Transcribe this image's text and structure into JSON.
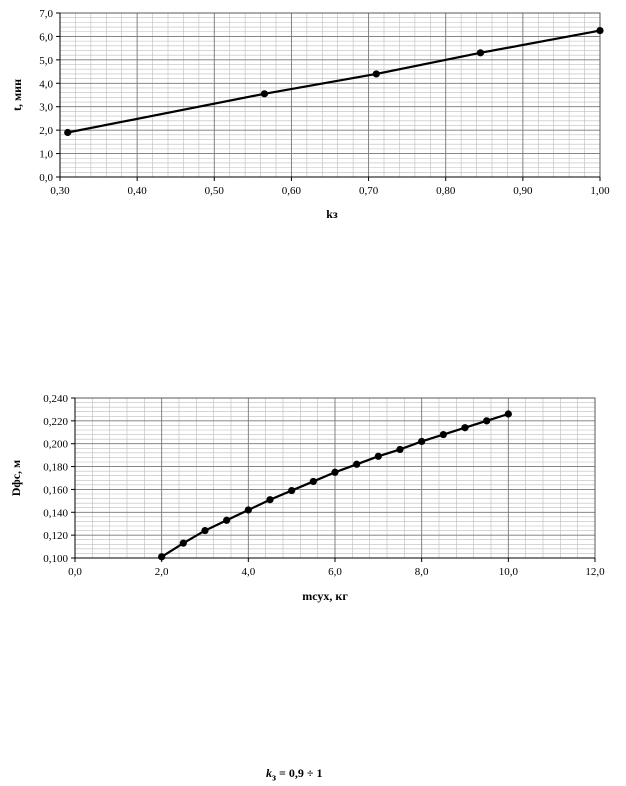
{
  "chart_data": [
    {
      "type": "line",
      "title": "",
      "xlabel": "kз",
      "ylabel": "t, мин",
      "xlim": [
        0.3,
        1.0
      ],
      "ylim": [
        0.0,
        7.0
      ],
      "x_ticks": [
        "0,30",
        "0,40",
        "0,50",
        "0,60",
        "0,70",
        "0,80",
        "0,90",
        "1,00"
      ],
      "x_tick_values": [
        0.3,
        0.4,
        0.5,
        0.6,
        0.7,
        0.8,
        0.9,
        1.0
      ],
      "y_ticks": [
        "0,0",
        "1,0",
        "2,0",
        "3,0",
        "4,0",
        "5,0",
        "6,0",
        "7,0"
      ],
      "y_tick_values": [
        0,
        1,
        2,
        3,
        4,
        5,
        6,
        7
      ],
      "grid": true,
      "series": [
        {
          "x": [
            0.31,
            0.565,
            0.71,
            0.845,
            1.0
          ],
          "y": [
            1.9,
            3.55,
            4.4,
            5.3,
            6.25
          ]
        }
      ]
    },
    {
      "type": "line",
      "title": "",
      "xlabel": "mсух, кг",
      "ylabel": "Dфс, м",
      "xlim": [
        0.0,
        12.0
      ],
      "ylim": [
        0.1,
        0.24
      ],
      "x_ticks": [
        "0,0",
        "2,0",
        "4,0",
        "6,0",
        "8,0",
        "10,0",
        "12,0"
      ],
      "x_tick_values": [
        0,
        2,
        4,
        6,
        8,
        10,
        12
      ],
      "y_ticks": [
        "0,100",
        "0,120",
        "0,140",
        "0,160",
        "0,180",
        "0,200",
        "0,220",
        "0,240"
      ],
      "y_tick_values": [
        0.1,
        0.12,
        0.14,
        0.16,
        0.18,
        0.2,
        0.22,
        0.24
      ],
      "grid": true,
      "series": [
        {
          "x": [
            2.0,
            2.5,
            3.0,
            3.5,
            4.0,
            4.5,
            5.0,
            5.5,
            6.0,
            6.5,
            7.0,
            7.5,
            8.0,
            8.5,
            9.0,
            9.5,
            10.0
          ],
          "y": [
            0.101,
            0.113,
            0.124,
            0.133,
            0.142,
            0.151,
            0.159,
            0.167,
            0.175,
            0.182,
            0.189,
            0.195,
            0.202,
            0.208,
            0.214,
            0.22,
            0.226
          ]
        }
      ]
    }
  ],
  "formula": {
    "var": "k",
    "sub": "з",
    "rest": " = 0,9 ÷ 1"
  }
}
